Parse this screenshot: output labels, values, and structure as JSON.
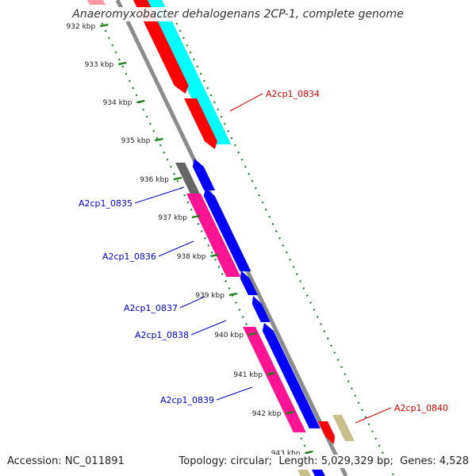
{
  "title": "Anaeromyxobacter dehalogenans 2CP-1, complete genome",
  "accession": {
    "label": "Accession:",
    "value": "NC_011891"
  },
  "topology": {
    "label": "Topology:",
    "value": "circular"
  },
  "length": {
    "label": "Length:",
    "value": "5,029,329 bp"
  },
  "genes": {
    "label": "Genes:",
    "value": "4,528"
  },
  "scale_ticks": [
    "932 kbp",
    "933 kbp",
    "934 kbp",
    "935 kbp",
    "936 kbp",
    "937 kbp",
    "938 kbp",
    "939 kbp",
    "940 kbp",
    "941 kbp",
    "942 kbp",
    "943 kbp"
  ],
  "gene_labels": [
    "A2cp1_0834",
    "A2cp1_0835",
    "A2cp1_0836",
    "A2cp1_0837",
    "A2cp1_0838",
    "A2cp1_0839",
    "A2cp1_0840"
  ],
  "colors": {
    "backbone": "#8c8c8c",
    "tick_green": "#1a7f1a",
    "forward_cds": "#ff0000",
    "forward_feature": "#00ffff",
    "reverse_cds": "#0000ff",
    "reverse_feature": "#ff1493",
    "pseudo_gray": "#666666",
    "khaki": "#c8c08a",
    "label_red": "#cc0000",
    "label_blue": "#0000cc"
  }
}
